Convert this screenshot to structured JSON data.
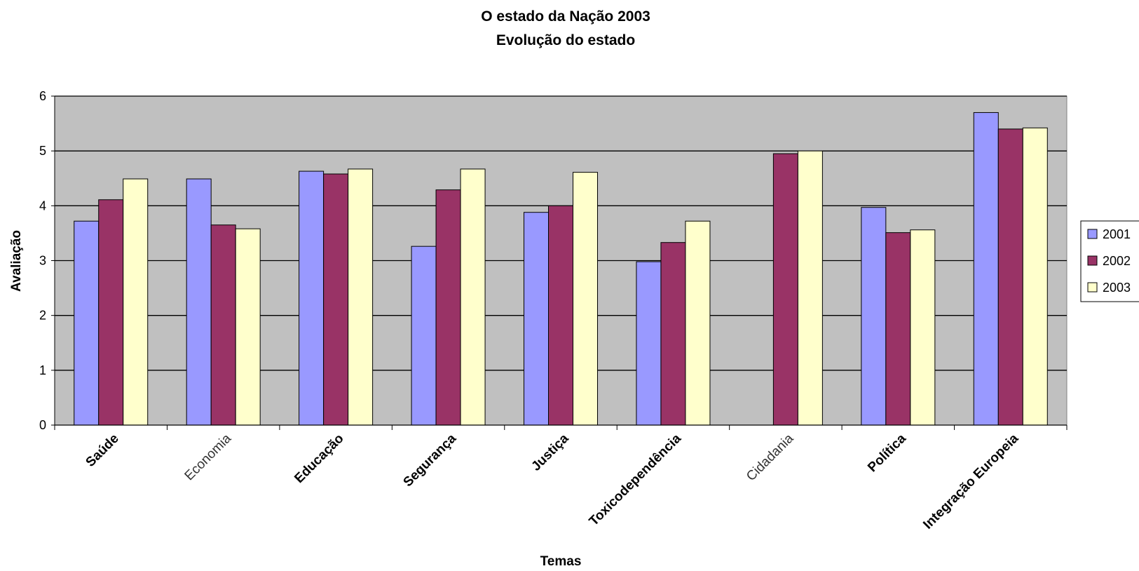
{
  "chart_data": {
    "type": "bar",
    "title": "O estado da Nação 2003",
    "subtitle": "Evolução do estado",
    "xlabel": "Temas",
    "ylabel": "Avaliação",
    "ylim": [
      0,
      6
    ],
    "yticks": [
      "0",
      "1",
      "2",
      "3",
      "4",
      "5",
      "6"
    ],
    "grid": true,
    "legend_position": "right",
    "categories": [
      "Saúde",
      "Economia",
      "Educação",
      "Segurança",
      "Justiça",
      "Toxicodependência",
      "Cidadania",
      "Política",
      "Integração Europeia"
    ],
    "series": [
      {
        "name": "2001",
        "color": "#9999ff",
        "values": [
          3.72,
          4.49,
          4.63,
          3.26,
          3.88,
          2.98,
          null,
          3.97,
          5.7
        ]
      },
      {
        "name": "2002",
        "color": "#993366",
        "values": [
          4.11,
          3.65,
          4.58,
          4.29,
          4.0,
          3.33,
          4.95,
          3.51,
          5.4
        ]
      },
      {
        "name": "2003",
        "color": "#ffffcc",
        "values": [
          4.49,
          3.58,
          4.67,
          4.67,
          4.61,
          3.72,
          5.0,
          3.56,
          5.42
        ]
      }
    ],
    "plot_background": "#c0c0c0"
  }
}
